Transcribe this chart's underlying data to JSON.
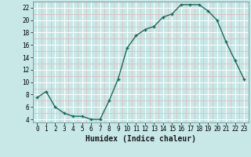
{
  "x": [
    0,
    1,
    2,
    3,
    4,
    5,
    6,
    7,
    8,
    9,
    10,
    11,
    12,
    13,
    14,
    15,
    16,
    17,
    18,
    19,
    20,
    21,
    22,
    23
  ],
  "y": [
    7.5,
    8.5,
    6.0,
    5.0,
    4.5,
    4.5,
    4.0,
    4.0,
    7.0,
    10.5,
    15.5,
    17.5,
    18.5,
    19.0,
    20.5,
    21.0,
    22.5,
    22.5,
    22.5,
    21.5,
    20.0,
    16.5,
    13.5,
    10.5
  ],
  "line_color": "#1a6b5a",
  "marker": "+",
  "marker_size": 3.5,
  "marker_linewidth": 1.0,
  "bg_color": "#c8e8e8",
  "grid_color_major": "#ffffff",
  "grid_color_minor": "#e0b8b8",
  "xlabel": "Humidex (Indice chaleur)",
  "xlabel_fontsize": 7,
  "ylabel_ticks": [
    4,
    6,
    8,
    10,
    12,
    14,
    16,
    18,
    20,
    22
  ],
  "ylim": [
    3.5,
    23.0
  ],
  "xlim": [
    -0.5,
    23.5
  ],
  "xtick_labels": [
    "0",
    "1",
    "2",
    "3",
    "4",
    "5",
    "6",
    "7",
    "8",
    "9",
    "10",
    "11",
    "12",
    "13",
    "14",
    "15",
    "16",
    "17",
    "18",
    "19",
    "20",
    "21",
    "22",
    "23"
  ],
  "linewidth": 1.0,
  "tick_fontsize": 5.5
}
